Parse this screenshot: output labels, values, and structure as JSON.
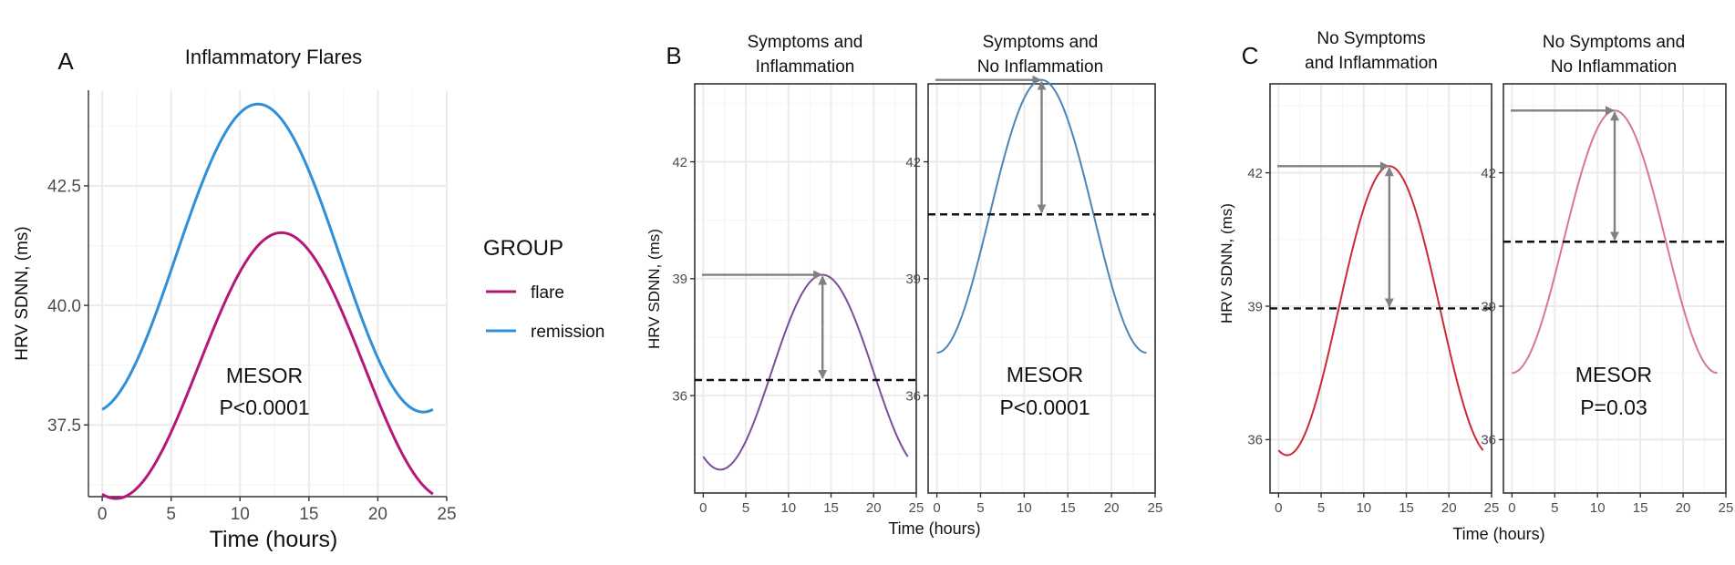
{
  "chart_data": [
    {
      "type": "line",
      "panel_letter": "A",
      "title": "Inflammatory Flares",
      "xlabel": "Time (hours)",
      "ylabel": "HRV SDNN, (ms)",
      "xlim": [
        -1,
        25
      ],
      "ylim": [
        36.0,
        44.5
      ],
      "xticks": [
        0,
        5,
        10,
        15,
        20,
        25
      ],
      "yticks": [
        37.5,
        40.0,
        42.5
      ],
      "grid": true,
      "frame": "axes-only",
      "legend": {
        "title": "GROUP",
        "placement": "right",
        "entries": [
          {
            "name": "flare",
            "color": "#b5177a"
          },
          {
            "name": "remission",
            "color": "#2f8fd8"
          }
        ]
      },
      "series": [
        {
          "name": "flare",
          "color": "#b5177a",
          "mesor": 38.74,
          "amplitude": 2.78,
          "peak_hour": 13.0,
          "x_range": [
            0,
            24
          ]
        },
        {
          "name": "remission",
          "color": "#2f8fd8",
          "mesor": 40.99,
          "amplitude": 3.22,
          "peak_hour": 11.3,
          "x_range": [
            0,
            24
          ]
        }
      ],
      "annotations": [
        {
          "text": "MESOR",
          "x": 12,
          "y": 38.3
        },
        {
          "text": "P<0.0001",
          "x": 12,
          "y": 37.5
        }
      ]
    },
    {
      "type": "line",
      "panel_letter": "B",
      "title": "Symptoms and Inflammation",
      "xlabel": "Time (hours)",
      "ylabel": "HRV SDNN, (ms)",
      "xlim": [
        -1,
        25
      ],
      "ylim": [
        33.5,
        44.0
      ],
      "xticks": [
        0,
        5,
        10,
        15,
        20,
        25
      ],
      "yticks": [
        36,
        39,
        42
      ],
      "grid": true,
      "frame": "box",
      "series": [
        {
          "name": "",
          "color": "#7b4d9b",
          "mesor": 36.6,
          "amplitude": 2.5,
          "peak_hour": 14.0,
          "x_range": [
            0,
            24
          ],
          "mesor_line": 36.4
        }
      ],
      "annotations": []
    },
    {
      "type": "line",
      "panel_letter": "",
      "title": "Symptoms and No Inflammation",
      "xlabel": "",
      "ylabel": "",
      "xlim": [
        -1,
        25
      ],
      "ylim": [
        33.5,
        44.0
      ],
      "xticks": [
        0,
        5,
        10,
        15,
        20,
        25
      ],
      "yticks": [
        36,
        39,
        42
      ],
      "grid": true,
      "frame": "box",
      "series": [
        {
          "name": "",
          "color": "#4a86b8",
          "mesor": 40.6,
          "amplitude": 3.5,
          "peak_hour": 12.0,
          "x_range": [
            0,
            24
          ],
          "mesor_line": 40.65
        }
      ],
      "annotations": [
        {
          "text": "MESOR",
          "x": 13,
          "y": 37.0
        },
        {
          "text": "P<0.0001",
          "x": 13,
          "y": 36.0
        }
      ]
    },
    {
      "type": "line",
      "panel_letter": "C",
      "title": "No Symptoms and Inflammation",
      "xlabel": "Time (hours)",
      "ylabel": "HRV SDNN, (ms)",
      "xlim": [
        -1,
        25
      ],
      "ylim": [
        34.8,
        44.0
      ],
      "xticks": [
        0,
        5,
        10,
        15,
        20,
        25
      ],
      "yticks": [
        36,
        39,
        42
      ],
      "grid": true,
      "frame": "box",
      "series": [
        {
          "name": "",
          "color": "#cc2a36",
          "mesor": 38.9,
          "amplitude": 3.25,
          "peak_hour": 13.0,
          "x_range": [
            0,
            24
          ],
          "mesor_line": 38.95
        }
      ],
      "annotations": []
    },
    {
      "type": "line",
      "panel_letter": "",
      "title": "No Symptoms and No Inflammation",
      "xlabel": "",
      "ylabel": "",
      "xlim": [
        -1,
        25
      ],
      "ylim": [
        34.8,
        44.0
      ],
      "xticks": [
        0,
        5,
        10,
        15,
        20,
        25
      ],
      "yticks": [
        36,
        39,
        42
      ],
      "grid": true,
      "frame": "box",
      "series": [
        {
          "name": "",
          "color": "#d9739f",
          "mesor": 40.45,
          "amplitude": 2.95,
          "peak_hour": 12.0,
          "x_range": [
            0,
            24
          ],
          "mesor_line": 40.45
        }
      ],
      "annotations": [
        {
          "text": "MESOR",
          "x": 12,
          "y": 37.3
        },
        {
          "text": "P=0.03",
          "x": 12,
          "y": 36.4
        }
      ]
    }
  ]
}
